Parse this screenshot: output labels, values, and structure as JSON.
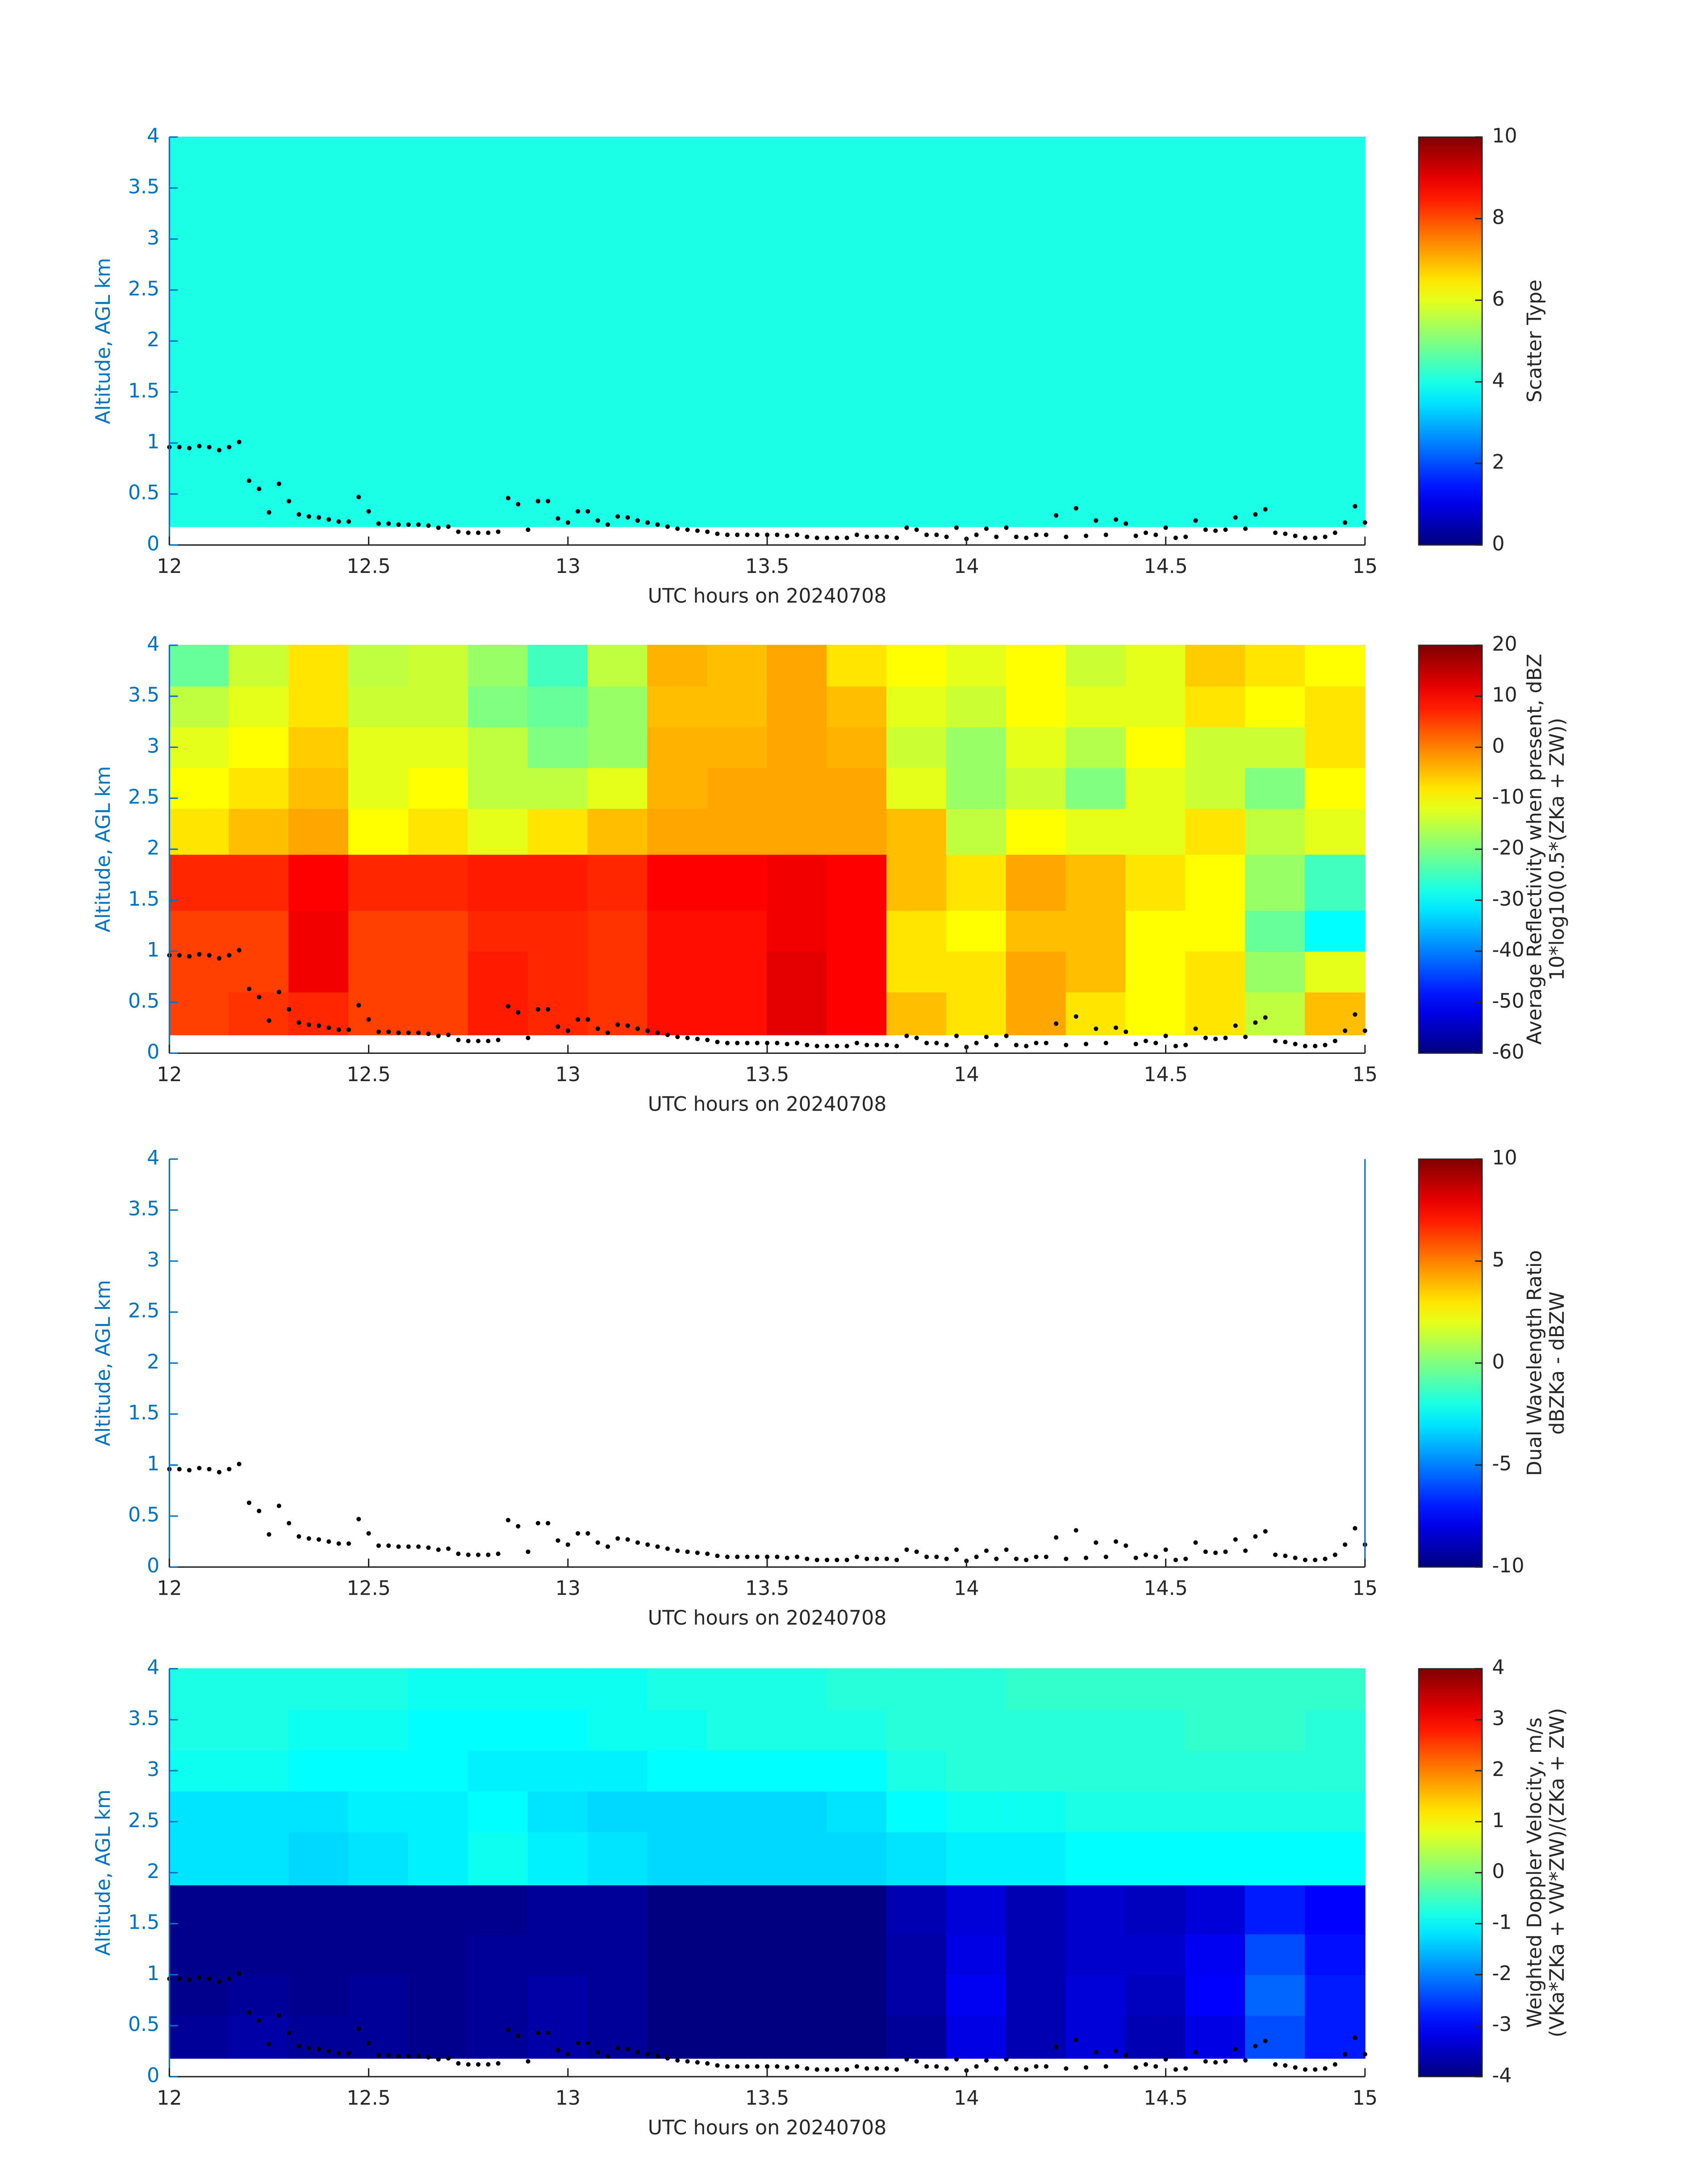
{
  "chart_data": [
    {
      "type": "heatmap",
      "x_label": "UTC hours on 20240708",
      "y_label": "Altitude, AGL km",
      "xlim": [
        12,
        15
      ],
      "ylim": [
        0,
        4
      ],
      "xticks": [
        12,
        12.5,
        13,
        13.5,
        14,
        14.5,
        15
      ],
      "yticks": [
        0,
        0.5,
        1,
        1.5,
        2,
        2.5,
        3,
        3.5,
        4
      ],
      "colormap": "jet",
      "clim": [
        0,
        10
      ],
      "cticks": [
        0,
        2,
        4,
        6,
        8,
        10
      ],
      "colorbar_label": [
        "Scatter Type"
      ],
      "heatmap": {
        "x_edges": [
          12,
          15
        ],
        "y_edges": [
          0.18,
          4
        ],
        "values": [
          [
            4
          ]
        ]
      },
      "points": {
        "color": "#000000",
        "x": [
          12.0,
          12.025,
          12.05,
          12.075,
          12.1,
          12.125,
          12.15,
          12.175,
          12.2,
          12.225,
          12.25,
          12.275,
          12.3,
          12.325,
          12.35,
          12.375,
          12.4,
          12.425,
          12.45,
          12.475,
          12.5,
          12.525,
          12.55,
          12.575,
          12.6,
          12.625,
          12.65,
          12.675,
          12.7,
          12.725,
          12.75,
          12.775,
          12.8,
          12.825,
          12.85,
          12.875,
          12.9,
          12.925,
          12.95,
          12.975,
          13.0,
          13.025,
          13.05,
          13.075,
          13.1,
          13.125,
          13.15,
          13.175,
          13.2,
          13.225,
          13.25,
          13.275,
          13.3,
          13.325,
          13.35,
          13.375,
          13.4,
          13.425,
          13.45,
          13.475,
          13.5,
          13.525,
          13.55,
          13.575,
          13.6,
          13.625,
          13.65,
          13.675,
          13.7,
          13.725,
          13.75,
          13.775,
          13.8,
          13.825,
          13.85,
          13.875,
          13.9,
          13.925,
          13.95,
          13.975,
          14.0,
          14.025,
          14.05,
          14.075,
          14.1,
          14.125,
          14.15,
          14.175,
          14.2,
          14.225,
          14.25,
          14.275,
          14.3,
          14.325,
          14.35,
          14.375,
          14.4,
          14.425,
          14.45,
          14.475,
          14.5,
          14.525,
          14.55,
          14.575,
          14.6,
          14.625,
          14.65,
          14.675,
          14.7,
          14.725,
          14.75,
          14.775,
          14.8,
          14.825,
          14.85,
          14.875,
          14.9,
          14.925,
          14.95,
          14.975,
          15.0
        ],
        "y": [
          0.96,
          0.96,
          0.95,
          0.97,
          0.96,
          0.93,
          0.96,
          1.01,
          0.63,
          0.55,
          0.32,
          0.6,
          0.43,
          0.3,
          0.28,
          0.27,
          0.25,
          0.23,
          0.23,
          0.47,
          0.33,
          0.21,
          0.21,
          0.2,
          0.2,
          0.2,
          0.19,
          0.17,
          0.18,
          0.13,
          0.12,
          0.12,
          0.12,
          0.13,
          0.46,
          0.4,
          0.15,
          0.43,
          0.43,
          0.26,
          0.22,
          0.33,
          0.33,
          0.24,
          0.2,
          0.28,
          0.27,
          0.24,
          0.22,
          0.2,
          0.18,
          0.16,
          0.15,
          0.14,
          0.13,
          0.11,
          0.1,
          0.1,
          0.1,
          0.1,
          0.1,
          0.1,
          0.09,
          0.1,
          0.08,
          0.07,
          0.07,
          0.07,
          0.07,
          0.1,
          0.08,
          0.08,
          0.08,
          0.07,
          0.17,
          0.15,
          0.1,
          0.1,
          0.08,
          0.17,
          0.06,
          0.1,
          0.16,
          0.08,
          0.17,
          0.08,
          0.07,
          0.1,
          0.1,
          0.29,
          0.08,
          0.36,
          0.09,
          0.24,
          0.1,
          0.25,
          0.21,
          0.09,
          0.12,
          0.1,
          0.17,
          0.07,
          0.08,
          0.24,
          0.15,
          0.14,
          0.15,
          0.27,
          0.16,
          0.3,
          0.35,
          0.12,
          0.11,
          0.09,
          0.07,
          0.07,
          0.08,
          0.12,
          0.22,
          0.38,
          0.22
        ]
      }
    },
    {
      "type": "heatmap",
      "x_label": "UTC hours on 20240708",
      "y_label": "Altitude, AGL km",
      "xlim": [
        12,
        15
      ],
      "ylim": [
        0,
        4
      ],
      "xticks": [
        12,
        12.5,
        13,
        13.5,
        14,
        14.5,
        15
      ],
      "yticks": [
        0,
        0.5,
        1,
        1.5,
        2,
        2.5,
        3,
        3.5,
        4
      ],
      "colormap": "jet",
      "clim": [
        -60,
        20
      ],
      "cticks": [
        -60,
        -50,
        -40,
        -30,
        -20,
        -10,
        0,
        10,
        20
      ],
      "colorbar_label": [
        "Average Reflectivity when present, dBZ",
        "10*log10(0.5*(ZKa + ZW))"
      ],
      "heatmap": {
        "x_edges": [
          12,
          12.15,
          12.3,
          12.45,
          12.6,
          12.75,
          12.9,
          13.05,
          13.2,
          13.35,
          13.5,
          13.65,
          13.8,
          13.95,
          14.1,
          14.25,
          14.4,
          14.55,
          14.7,
          14.85,
          15
        ],
        "y_edges": [
          0.18,
          0.6,
          1.0,
          1.4,
          1.95,
          2.4,
          2.8,
          3.2,
          3.6,
          4.0
        ],
        "values": [
          [
            5,
            6,
            7,
            5,
            5,
            8,
            7,
            6,
            9,
            9,
            12,
            10,
            -5,
            -8,
            -3,
            -8,
            -10,
            -8,
            -15,
            -5
          ],
          [
            5,
            5,
            11,
            5,
            5,
            8,
            7,
            6,
            9,
            9,
            12,
            10,
            -8,
            -8,
            -3,
            -5,
            -10,
            -8,
            -18,
            -12
          ],
          [
            5,
            5,
            11,
            5,
            5,
            7,
            7,
            6,
            9,
            9,
            11,
            10,
            -8,
            -10,
            -5,
            -5,
            -10,
            -10,
            -22,
            -30
          ],
          [
            7,
            7,
            10,
            7,
            7,
            8,
            8,
            7,
            10,
            10,
            11,
            10,
            -5,
            -8,
            -3,
            -5,
            -8,
            -10,
            -18,
            -25
          ],
          [
            -8,
            -5,
            -3,
            -10,
            -8,
            -12,
            -8,
            -5,
            -3,
            -3,
            -3,
            -3,
            -5,
            -15,
            -10,
            -12,
            -12,
            -8,
            -15,
            -12
          ],
          [
            -10,
            -8,
            -5,
            -12,
            -10,
            -15,
            -15,
            -12,
            -4,
            -3,
            -3,
            -3,
            -12,
            -18,
            -14,
            -20,
            -12,
            -14,
            -20,
            -10
          ],
          [
            -12,
            -10,
            -6,
            -12,
            -12,
            -15,
            -20,
            -18,
            -4,
            -4,
            -3,
            -4,
            -14,
            -18,
            -12,
            -16,
            -10,
            -14,
            -14,
            -8
          ],
          [
            -15,
            -12,
            -8,
            -14,
            -14,
            -20,
            -22,
            -18,
            -5,
            -5,
            -3,
            -5,
            -12,
            -14,
            -10,
            -12,
            -12,
            -8,
            -10,
            -8
          ],
          [
            -22,
            -14,
            -8,
            -15,
            -14,
            -18,
            -25,
            -15,
            -4,
            -5,
            -3,
            -8,
            -10,
            -12,
            -10,
            -14,
            -12,
            -6,
            -8,
            -10
          ]
        ]
      }
    },
    {
      "type": "heatmap",
      "x_label": "UTC hours on 20240708",
      "y_label": "Altitude, AGL km",
      "xlim": [
        12,
        15
      ],
      "ylim": [
        0,
        4
      ],
      "xticks": [
        12,
        12.5,
        13,
        13.5,
        14,
        14.5,
        15
      ],
      "yticks": [
        0,
        0.5,
        1,
        1.5,
        2,
        2.5,
        3,
        3.5,
        4
      ],
      "colormap": "jet",
      "clim": [
        -10,
        10
      ],
      "cticks": [
        -10,
        -5,
        0,
        5,
        10
      ],
      "colorbar_label": [
        "Dual Wavelength Ratio",
        "dBZKa - dBZW"
      ]
    },
    {
      "type": "heatmap",
      "x_label": "UTC hours on 20240708",
      "y_label": "Altitude, AGL km",
      "xlim": [
        12,
        15
      ],
      "ylim": [
        0,
        4
      ],
      "xticks": [
        12,
        12.5,
        13,
        13.5,
        14,
        14.5,
        15
      ],
      "yticks": [
        0,
        0.5,
        1,
        1.5,
        2,
        2.5,
        3,
        3.5,
        4
      ],
      "colormap": "jet",
      "clim": [
        -4,
        4
      ],
      "cticks": [
        -4,
        -3,
        -2,
        -1,
        0,
        1,
        2,
        3,
        4
      ],
      "colorbar_label": [
        "Weighted Doppler Velocity, m/s",
        "(VKa*ZKa + VW*ZW)/(ZKa + ZW)"
      ],
      "heatmap": {
        "x_edges": [
          12,
          12.15,
          12.3,
          12.45,
          12.6,
          12.75,
          12.9,
          13.05,
          13.2,
          13.35,
          13.5,
          13.65,
          13.8,
          13.95,
          14.1,
          14.25,
          14.4,
          14.55,
          14.7,
          14.85,
          15
        ],
        "y_edges": [
          0.18,
          0.6,
          1.0,
          1.4,
          1.88,
          2.4,
          2.8,
          3.2,
          3.6,
          4.0
        ],
        "values": [
          [
            -3.8,
            -3.7,
            -3.8,
            -3.8,
            -3.9,
            -3.8,
            -3.7,
            -3.8,
            -4,
            -4,
            -4,
            -4,
            -3.8,
            -3.2,
            -3.6,
            -3.3,
            -3.6,
            -3.2,
            -2.4,
            -2.8
          ],
          [
            -3.9,
            -3.8,
            -3.9,
            -3.8,
            -3.9,
            -3.8,
            -3.7,
            -3.8,
            -4,
            -4,
            -4,
            -4,
            -3.7,
            -3.1,
            -3.6,
            -3.3,
            -3.5,
            -3.0,
            -2.2,
            -2.8
          ],
          [
            -3.9,
            -3.9,
            -3.9,
            -3.9,
            -3.9,
            -3.8,
            -3.8,
            -3.8,
            -4,
            -4,
            -4,
            -4,
            -3.7,
            -3.2,
            -3.6,
            -3.4,
            -3.4,
            -3.1,
            -2.4,
            -2.9
          ],
          [
            -3.9,
            -3.9,
            -3.9,
            -3.9,
            -3.9,
            -3.9,
            -3.8,
            -3.8,
            -4,
            -4,
            -4,
            -4,
            -3.6,
            -3.3,
            -3.6,
            -3.4,
            -3.5,
            -3.3,
            -2.8,
            -3.0
          ],
          [
            -1.2,
            -1.2,
            -1.3,
            -1.2,
            -1.1,
            -0.9,
            -1.1,
            -1.2,
            -1.3,
            -1.3,
            -1.3,
            -1.3,
            -1.2,
            -1.1,
            -1.1,
            -1.0,
            -1.0,
            -1.0,
            -1.0,
            -1.0
          ],
          [
            -1.2,
            -1.2,
            -1.2,
            -1.1,
            -1.1,
            -1.0,
            -1.2,
            -1.3,
            -1.3,
            -1.3,
            -1.3,
            -1.2,
            -1.0,
            -0.9,
            -0.9,
            -0.8,
            -0.8,
            -0.8,
            -0.8,
            -0.8
          ],
          [
            -0.9,
            -0.9,
            -1.0,
            -1.0,
            -1.0,
            -1.1,
            -1.1,
            -1.1,
            -1.0,
            -1.0,
            -1.0,
            -1.0,
            -0.8,
            -0.7,
            -0.7,
            -0.7,
            -0.7,
            -0.7,
            -0.7,
            -0.7
          ],
          [
            -0.8,
            -0.8,
            -0.9,
            -0.9,
            -1.0,
            -1.0,
            -1.0,
            -0.9,
            -0.9,
            -0.8,
            -0.8,
            -0.8,
            -0.7,
            -0.7,
            -0.7,
            -0.7,
            -0.7,
            -0.6,
            -0.6,
            -0.7
          ],
          [
            -0.8,
            -0.8,
            -0.8,
            -0.8,
            -0.9,
            -0.9,
            -0.9,
            -0.9,
            -0.8,
            -0.8,
            -0.8,
            -0.7,
            -0.7,
            -0.7,
            -0.6,
            -0.6,
            -0.6,
            -0.6,
            -0.6,
            -0.6
          ]
        ]
      }
    }
  ]
}
